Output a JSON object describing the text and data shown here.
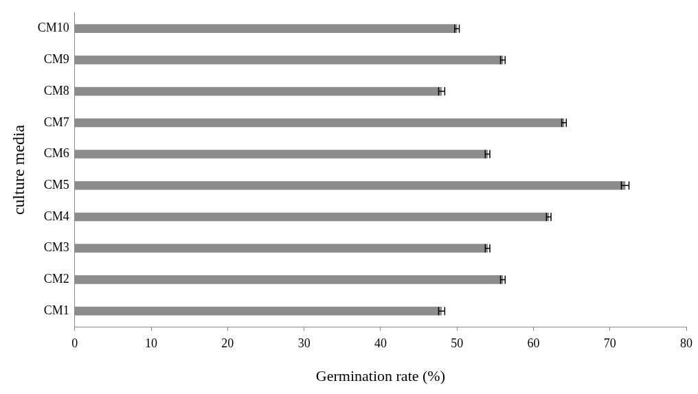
{
  "chart_data": {
    "type": "bar",
    "orientation": "horizontal",
    "xlabel": "Germination rate (%)",
    "ylabel": "culture media",
    "categories": [
      "CM10",
      "CM9",
      "CM8",
      "CM7",
      "CM6",
      "CM5",
      "CM4",
      "CM3",
      "CM2",
      "CM1"
    ],
    "values": [
      50,
      56,
      48,
      64,
      54,
      72,
      62,
      54,
      56,
      48
    ],
    "errors": [
      0.3,
      0.3,
      0.4,
      0.3,
      0.3,
      0.5,
      0.3,
      0.3,
      0.3,
      0.4
    ],
    "color": "#8c8c8c",
    "xlim": [
      0,
      80
    ],
    "xticks": [
      0,
      10,
      20,
      30,
      40,
      50,
      60,
      70,
      80
    ],
    "grid": false,
    "legend": false
  }
}
